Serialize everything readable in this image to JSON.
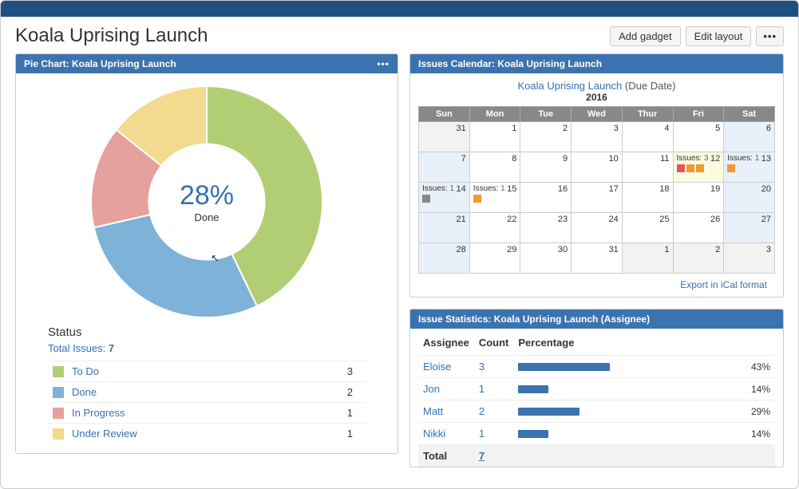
{
  "page": {
    "title": "Koala Uprising Launch",
    "buttons": {
      "add_gadget": "Add gadget",
      "edit_layout": "Edit layout"
    }
  },
  "colors": {
    "brand_bar": "#205081",
    "gadget_header": "#3b73af",
    "link": "#3572b0"
  },
  "pie_chart": {
    "title": "Pie Chart: Koala Uprising Launch",
    "type": "pie",
    "center_pct": "28%",
    "center_label": "Done",
    "status_heading": "Status",
    "total_label": "Total Issues:",
    "total_value": "7",
    "inner_radius": 70,
    "outer_radius": 140,
    "slices": [
      {
        "label": "To Do",
        "count": 3,
        "fraction": 0.4286,
        "color": "#b1ce74"
      },
      {
        "label": "Done",
        "count": 2,
        "fraction": 0.2857,
        "color": "#7eb2d8"
      },
      {
        "label": "In Progress",
        "count": 1,
        "fraction": 0.1429,
        "color": "#e6a09d"
      },
      {
        "label": "Under Review",
        "count": 1,
        "fraction": 0.1429,
        "color": "#f4da8e"
      }
    ]
  },
  "calendar": {
    "title": "Issues Calendar: Koala Uprising Launch",
    "link_text": "Koala Uprising Launch",
    "subtitle": "(Due Date)",
    "year": "2016",
    "days": [
      "Sun",
      "Mon",
      "Tue",
      "Wed",
      "Thur",
      "Fri",
      "Sat"
    ],
    "export_label": "Export in iCal format",
    "weeks": [
      [
        {
          "n": "31",
          "dim": true
        },
        {
          "n": "1"
        },
        {
          "n": "2"
        },
        {
          "n": "3"
        },
        {
          "n": "4"
        },
        {
          "n": "5"
        },
        {
          "n": "6",
          "sat": true
        }
      ],
      [
        {
          "n": "7",
          "sun": true
        },
        {
          "n": "8"
        },
        {
          "n": "9"
        },
        {
          "n": "10"
        },
        {
          "n": "11"
        },
        {
          "n": "12",
          "highlight": true,
          "issue_label": "Issues:",
          "issue_count": "3",
          "blocks": [
            "#e2555b",
            "#f29a2e",
            "#f29a2e"
          ]
        },
        {
          "n": "13",
          "sat": true,
          "issue_label": "Issues:",
          "issue_count": "1",
          "blocks": [
            "#f29a2e"
          ]
        }
      ],
      [
        {
          "n": "14",
          "sun": true,
          "issue_label": "Issues:",
          "issue_count": "1",
          "blocks": [
            "#888888"
          ]
        },
        {
          "n": "15",
          "issue_label": "Issues:",
          "issue_count": "1",
          "blocks": [
            "#f29a2e"
          ]
        },
        {
          "n": "16"
        },
        {
          "n": "17"
        },
        {
          "n": "18"
        },
        {
          "n": "19"
        },
        {
          "n": "20",
          "sat": true
        }
      ],
      [
        {
          "n": "21",
          "sun": true
        },
        {
          "n": "22"
        },
        {
          "n": "23"
        },
        {
          "n": "24"
        },
        {
          "n": "25"
        },
        {
          "n": "26"
        },
        {
          "n": "27",
          "sat": true
        }
      ],
      [
        {
          "n": "28",
          "sun": true
        },
        {
          "n": "29"
        },
        {
          "n": "30"
        },
        {
          "n": "31"
        },
        {
          "n": "1",
          "dim": true
        },
        {
          "n": "2",
          "dim": true
        },
        {
          "n": "3",
          "dim": true
        }
      ]
    ]
  },
  "stats": {
    "title": "Issue Statistics: Koala Uprising Launch (Assignee)",
    "columns": [
      "Assignee",
      "Count",
      "Percentage"
    ],
    "bar_color": "#3b73af",
    "rows": [
      {
        "name": "Eloise",
        "count": "3",
        "pct": 43
      },
      {
        "name": "Jon",
        "count": "1",
        "pct": 14
      },
      {
        "name": "Matt",
        "count": "2",
        "pct": 29
      },
      {
        "name": "Nikki",
        "count": "1",
        "pct": 14
      }
    ],
    "total_label": "Total",
    "total_count": "7"
  }
}
